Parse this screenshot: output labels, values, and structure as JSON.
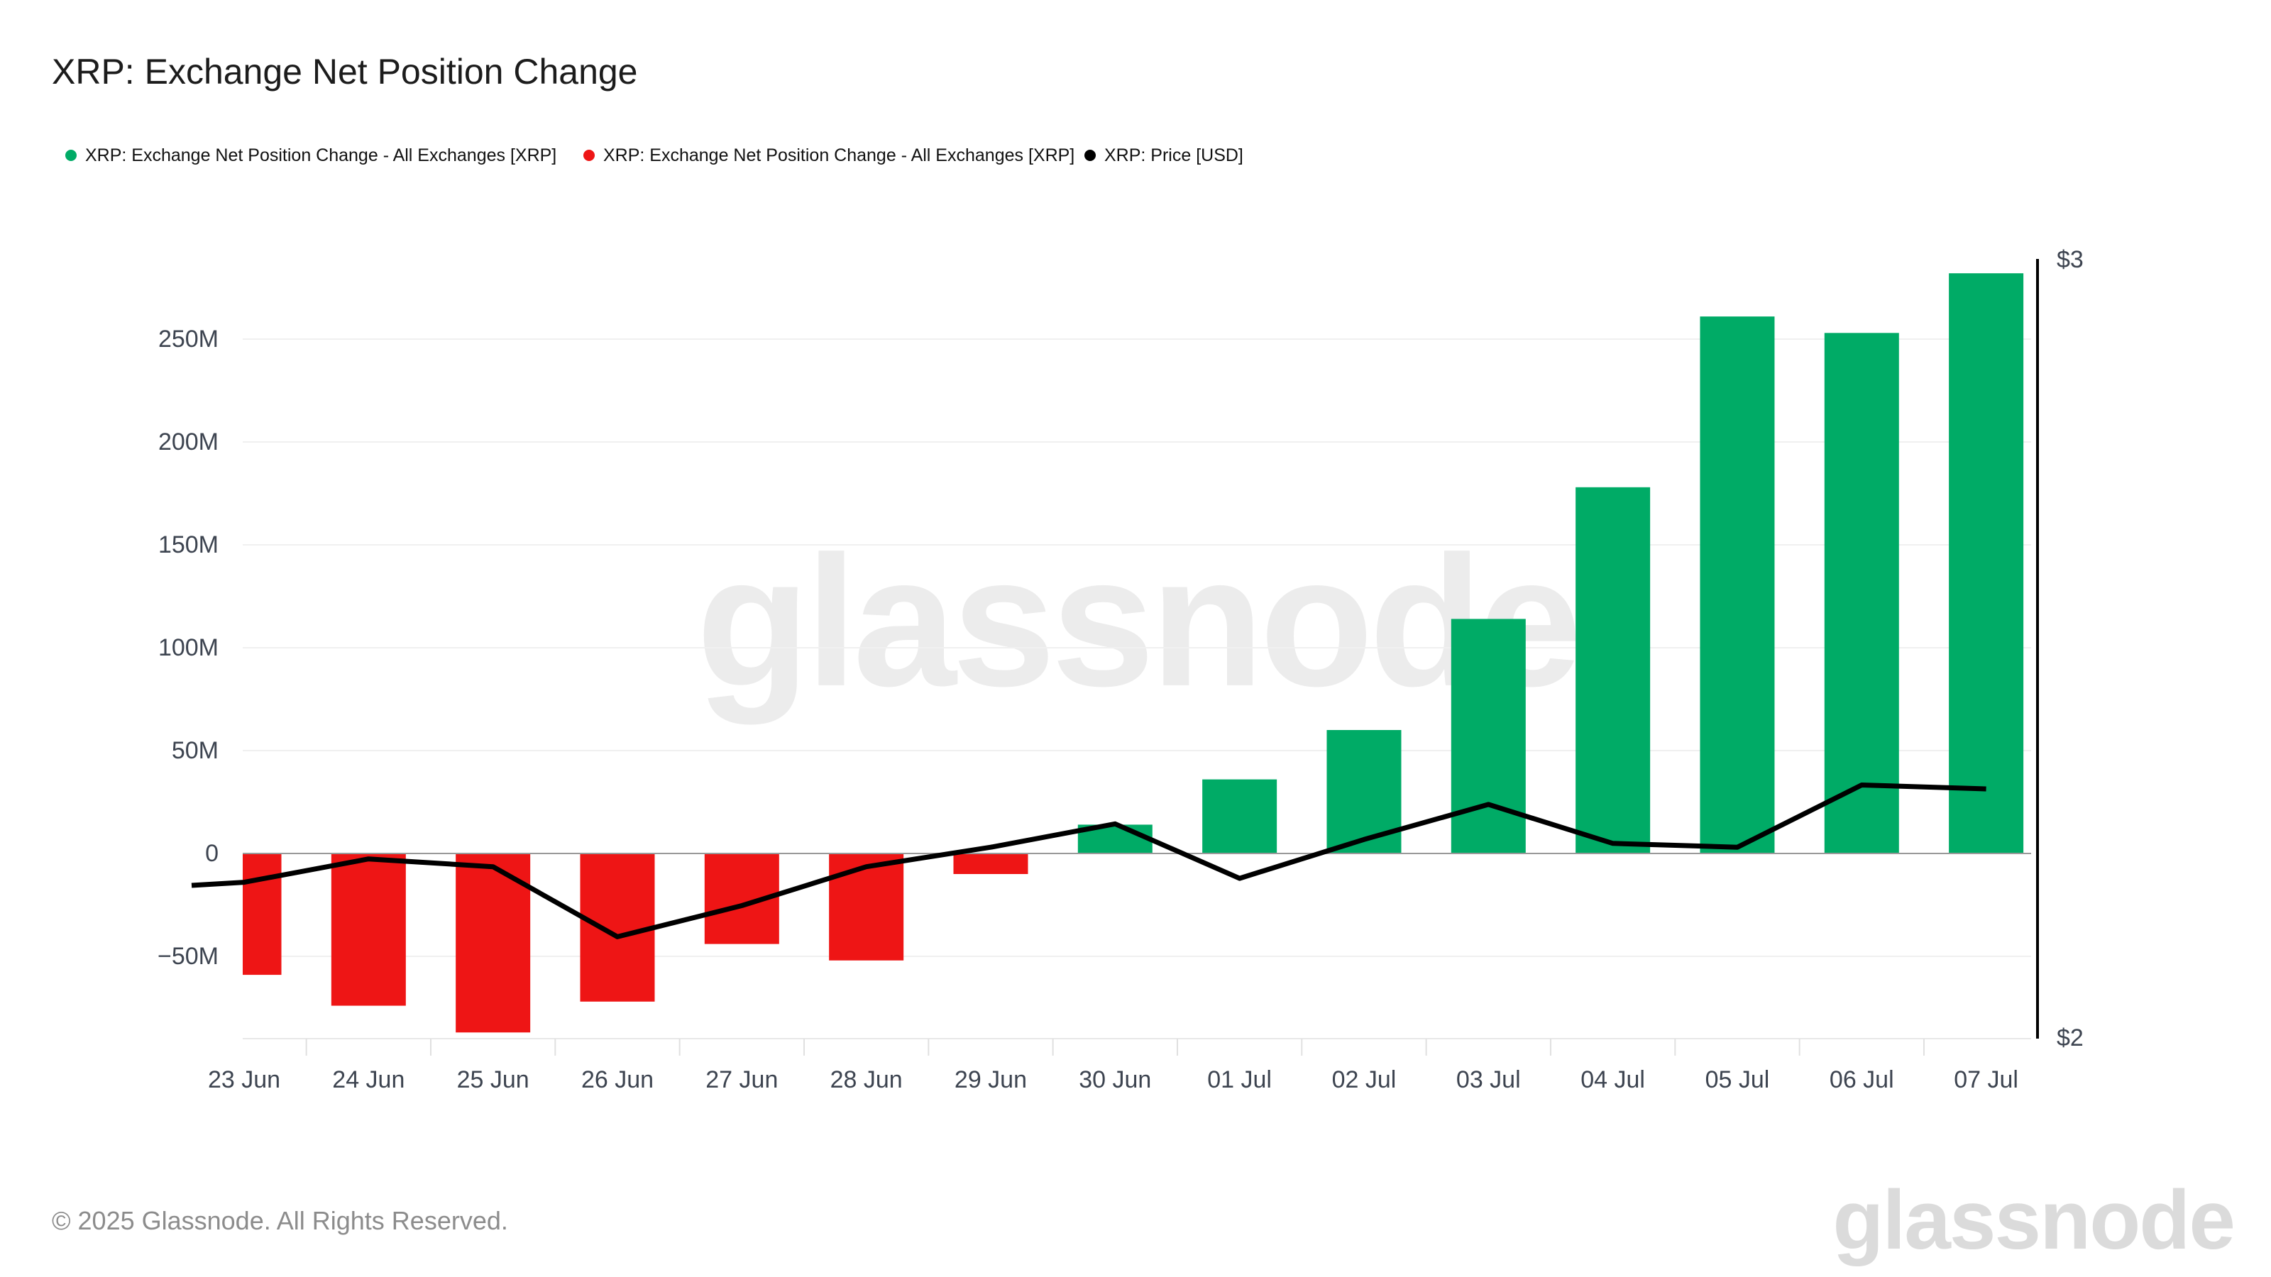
{
  "header": {
    "title": "XRP: Exchange Net Position Change"
  },
  "legend": [
    {
      "label": "XRP: Exchange Net Position Change - All Exchanges [XRP]",
      "color": "#00ab66"
    },
    {
      "label": "XRP: Exchange Net Position Change - All Exchanges [XRP]",
      "color": "#ee1515"
    },
    {
      "label": "XRP: Price [USD]",
      "color": "#000000"
    }
  ],
  "watermark": {
    "text": "glassnode"
  },
  "footer": {
    "copyright": "© 2025 Glassnode. All Rights Reserved.",
    "brand": "glassnode"
  },
  "chart_data": {
    "type": "bar+line",
    "title": "XRP: Exchange Net Position Change",
    "categories": [
      "23 Jun",
      "24 Jun",
      "25 Jun",
      "26 Jun",
      "27 Jun",
      "28 Jun",
      "29 Jun",
      "30 Jun",
      "01 Jul",
      "02 Jul",
      "03 Jul",
      "04 Jul",
      "05 Jul",
      "06 Jul",
      "07 Jul"
    ],
    "series": [
      {
        "name": "XRP: Exchange Net Position Change - All Exchanges [XRP]",
        "type": "bar",
        "unit": "XRP, millions",
        "values_m": [
          -59,
          -74,
          -87,
          -72,
          -44,
          -52,
          -10,
          14,
          36,
          60,
          114,
          178,
          261,
          253,
          282
        ],
        "positive_color": "#00ab66",
        "negative_color": "#ee1515"
      },
      {
        "name": "XRP: Price [USD]",
        "type": "line",
        "unit": "USD",
        "values": [
          2.2,
          2.23,
          2.22,
          2.13,
          2.17,
          2.22,
          2.245,
          2.275,
          2.205,
          2.255,
          2.3,
          2.25,
          2.245,
          2.325,
          2.32
        ],
        "lead_in_value": 2.196,
        "color": "#000000"
      }
    ],
    "y_left": {
      "tick_values_m": [
        250,
        200,
        150,
        100,
        50,
        0,
        -50
      ],
      "tick_labels": [
        "250M",
        "200M",
        "150M",
        "100M",
        "50M",
        "0",
        "−50M"
      ],
      "range_m": [
        -90,
        290
      ]
    },
    "y_right": {
      "tick_values": [
        3,
        2
      ],
      "tick_labels": [
        "$3",
        "$2"
      ],
      "range": [
        2,
        3
      ]
    },
    "grid": true,
    "legend_position": "top-left",
    "colors": {
      "grid": "#f0f0f0",
      "zero_line": "#999999",
      "axis_line": "#e8e8e8",
      "tick": "#e0e0e0",
      "spine": "#000000",
      "label": "#3d4450"
    }
  }
}
